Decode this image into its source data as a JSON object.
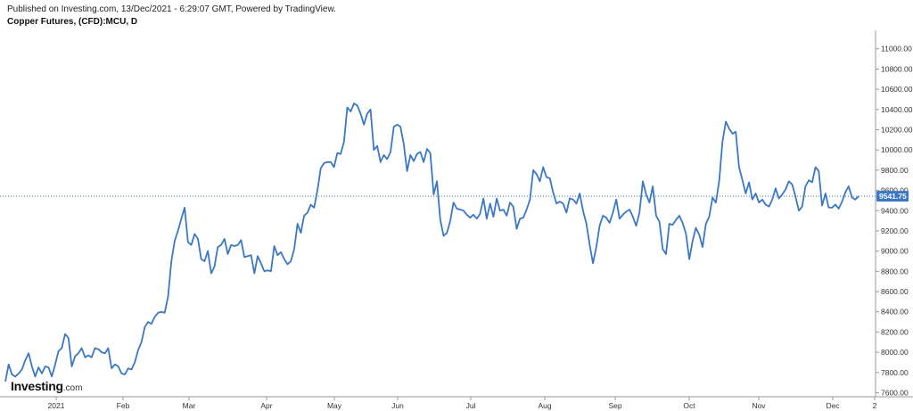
{
  "header": {
    "published": "Published on Investing.com, 13/Dec/2021 - 6:29:07 GMT, Powered by TradingView.",
    "title": "Copper Futures, (CFD):MCU, D"
  },
  "logo": {
    "name": "Investing",
    "suffix": ".com"
  },
  "colors": {
    "line": "#3b78c4",
    "price_label_bg": "#3b78c4",
    "axis": "#999999"
  },
  "chart_data": {
    "type": "line",
    "title": "Copper Futures, (CFD):MCU, D",
    "xlabel": "",
    "ylabel": "",
    "ylim": [
      7560,
      11130
    ],
    "y_ticks": [
      7600,
      7800,
      8000,
      8200,
      8400,
      8600,
      8800,
      9000,
      9200,
      9400,
      9600,
      9800,
      10000,
      10200,
      10400,
      10600,
      10800,
      11000
    ],
    "x_tick_labels": [
      "2021",
      "Feb",
      "Mar",
      "Apr",
      "May",
      "Jun",
      "Jul",
      "Aug",
      "Sep",
      "Oct",
      "Nov",
      "Dec",
      "2"
    ],
    "last_price": 9541.75,
    "last_price_label": "9541.75",
    "grid": false,
    "series": [
      {
        "name": "",
        "values": [
          7710,
          7880,
          7780,
          7760,
          7790,
          7830,
          7920,
          7990,
          7860,
          7760,
          7850,
          7790,
          7860,
          7850,
          7760,
          7880,
          8010,
          8040,
          8180,
          8140,
          7860,
          7960,
          7990,
          8040,
          7950,
          7970,
          7950,
          8040,
          8030,
          8000,
          7990,
          8040,
          7840,
          7880,
          7860,
          7790,
          7780,
          7840,
          7830,
          7900,
          8020,
          8100,
          8250,
          8300,
          8280,
          8350,
          8390,
          8400,
          8390,
          8550,
          8900,
          9100,
          9200,
          9320,
          9430,
          9090,
          9060,
          9170,
          9120,
          8920,
          8900,
          9000,
          8780,
          8850,
          9040,
          9060,
          9120,
          8970,
          9060,
          9050,
          9060,
          9110,
          8940,
          8950,
          8960,
          8780,
          8950,
          8880,
          8800,
          8810,
          8800,
          9050,
          8960,
          8990,
          8920,
          8870,
          8900,
          9020,
          9270,
          9180,
          9350,
          9380,
          9460,
          9430,
          9600,
          9820,
          9870,
          9880,
          9880,
          9830,
          9970,
          9960,
          10080,
          10420,
          10380,
          10460,
          10440,
          10360,
          10250,
          10360,
          10400,
          10000,
          10040,
          9880,
          9950,
          9910,
          9980,
          10230,
          10250,
          10230,
          10060,
          9790,
          9950,
          9890,
          9960,
          9980,
          9880,
          10010,
          9970,
          9560,
          9690,
          9310,
          9150,
          9180,
          9300,
          9480,
          9420,
          9410,
          9400,
          9360,
          9330,
          9360,
          9320,
          9370,
          9520,
          9320,
          9470,
          9340,
          9520,
          9400,
          9410,
          9350,
          9480,
          9440,
          9220,
          9320,
          9330,
          9410,
          9510,
          9800,
          9760,
          9690,
          9830,
          9730,
          9720,
          9580,
          9470,
          9490,
          9470,
          9380,
          9520,
          9510,
          9470,
          9570,
          9400,
          9270,
          9060,
          8880,
          9040,
          9250,
          9350,
          9330,
          9280,
          9380,
          9510,
          9320,
          9360,
          9390,
          9410,
          9340,
          9250,
          9380,
          9690,
          9560,
          9480,
          9640,
          9350,
          9290,
          9020,
          8970,
          9270,
          9260,
          9310,
          9350,
          9280,
          9170,
          8920,
          9100,
          9230,
          9160,
          9040,
          9270,
          9340,
          9530,
          9480,
          9690,
          10080,
          10280,
          10210,
          10160,
          10180,
          9830,
          9700,
          9570,
          9680,
          9510,
          9570,
          9480,
          9510,
          9460,
          9440,
          9510,
          9620,
          9520,
          9560,
          9610,
          9690,
          9660,
          9540,
          9400,
          9440,
          9640,
          9700,
          9680,
          9830,
          9790,
          9450,
          9570,
          9430,
          9430,
          9460,
          9420,
          9490,
          9580,
          9640,
          9530,
          9510,
          9541.75
        ]
      }
    ]
  }
}
